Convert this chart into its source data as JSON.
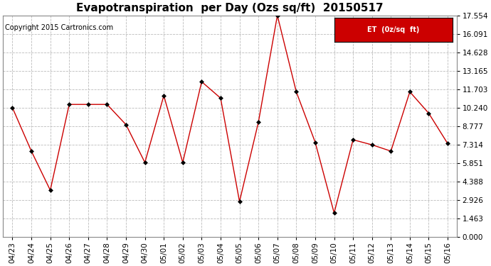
{
  "title": "Evapotranspiration  per Day (Ozs sq/ft)  20150517",
  "copyright": "Copyright 2015 Cartronics.com",
  "legend_label": "ET  (0z/sq  ft)",
  "dates": [
    "04/23",
    "04/24",
    "04/25",
    "04/26",
    "04/27",
    "04/28",
    "04/29",
    "04/30",
    "05/01",
    "05/02",
    "05/03",
    "05/04",
    "05/05",
    "05/06",
    "05/07",
    "05/08",
    "05/09",
    "05/10",
    "05/11",
    "05/12",
    "05/13",
    "05/14",
    "05/15",
    "05/16"
  ],
  "values": [
    10.24,
    6.8,
    3.7,
    10.5,
    10.5,
    10.5,
    8.9,
    5.9,
    11.2,
    5.9,
    12.3,
    11.0,
    2.8,
    9.1,
    17.554,
    11.5,
    7.5,
    1.9,
    7.7,
    7.3,
    6.8,
    11.5,
    9.8,
    7.4
  ],
  "y_ticks": [
    0.0,
    1.463,
    2.926,
    4.388,
    5.851,
    7.314,
    8.777,
    10.24,
    11.703,
    13.165,
    14.628,
    16.091,
    17.554
  ],
  "ylim": [
    0.0,
    17.554
  ],
  "line_color": "#cc0000",
  "marker_color": "#000000",
  "legend_bg": "#cc0000",
  "legend_text_color": "#ffffff",
  "bg_color": "#ffffff",
  "grid_color": "#bbbbbb",
  "title_fontsize": 11,
  "copyright_fontsize": 7,
  "tick_fontsize": 7.5
}
